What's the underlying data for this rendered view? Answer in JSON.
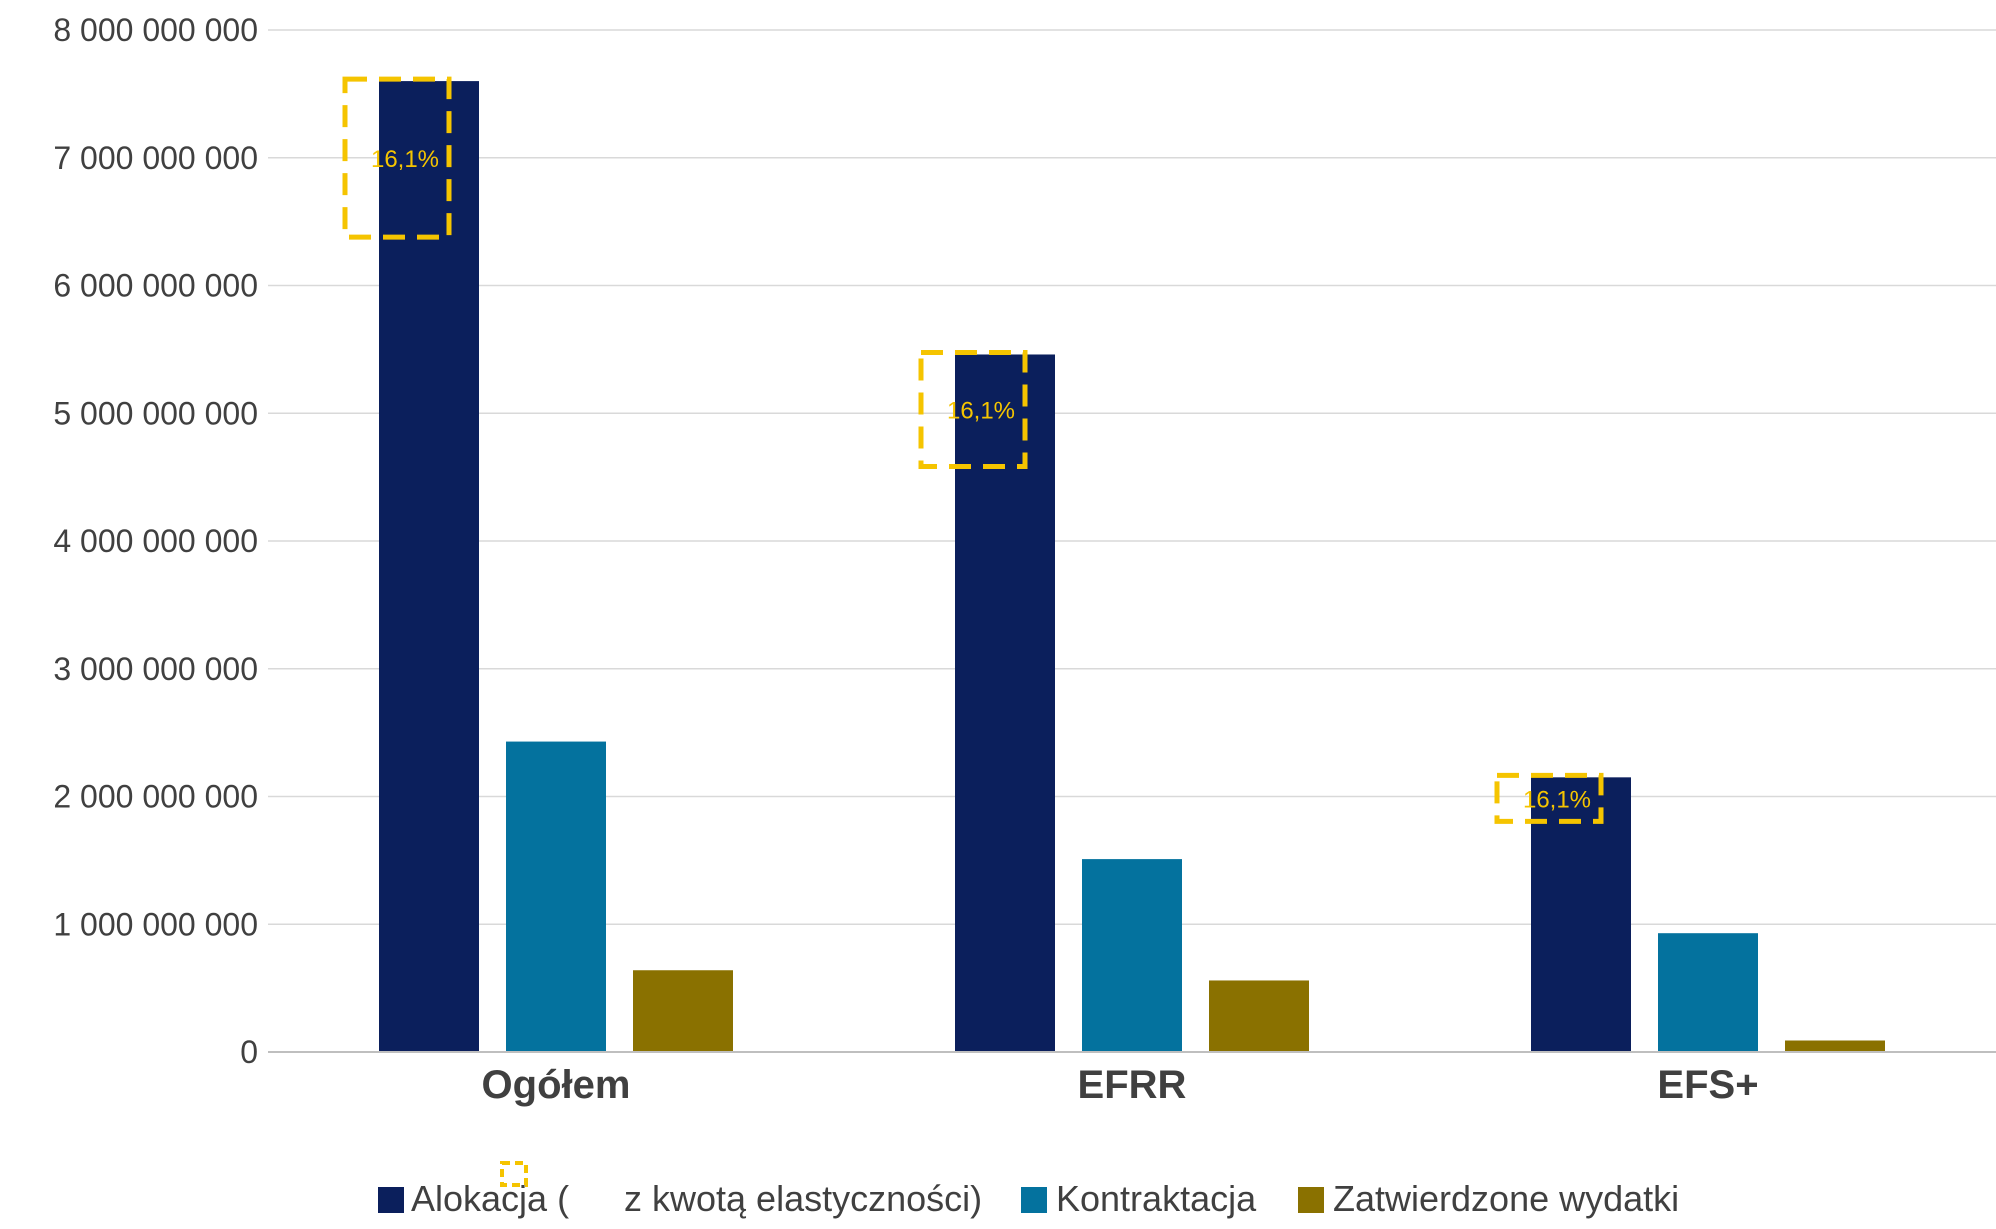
{
  "chart_data": {
    "type": "bar",
    "categories": [
      "Ogółem",
      "EFRR",
      "EFS+"
    ],
    "series": [
      {
        "name": "Alokacja (z kwotą elastyczności)",
        "values": [
          7600000000,
          5460000000,
          2150000000
        ]
      },
      {
        "name": "Kontraktacja",
        "values": [
          2430000000,
          1510000000,
          930000000
        ]
      },
      {
        "name": "Zatwierdzone wydatki",
        "values": [
          640000000,
          560000000,
          90000000
        ]
      }
    ],
    "ylim": [
      0,
      8000000000
    ],
    "yticks": [
      0,
      1000000000,
      2000000000,
      3000000000,
      4000000000,
      5000000000,
      6000000000,
      7000000000,
      8000000000
    ],
    "ytick_labels": [
      "0",
      "1 000 000 000",
      "2 000 000 000",
      "3 000 000 000",
      "4 000 000 000",
      "5 000 000 000",
      "6 000 000 000",
      "7 000 000 000",
      "8 000 000 000"
    ],
    "grid": true,
    "legend": {
      "placement": "bottom",
      "entries": [
        "Alokacja (",
        "z kwotą elastyczności)",
        "Kontraktacja",
        "Zatwierdzone wydatki"
      ]
    },
    "annotations": [
      {
        "category": "Ogółem",
        "label": "16,1%"
      },
      {
        "category": "EFRR",
        "label": "16,1%"
      },
      {
        "category": "EFS+",
        "label": "16,1%"
      }
    ],
    "colors": {
      "series": [
        "#0b1f5c",
        "#04729e",
        "#8a7100"
      ],
      "gridline": "#d9d9d9",
      "axis": "#bfbfbf",
      "annotation": "#f5c400",
      "text": "#404040"
    }
  }
}
